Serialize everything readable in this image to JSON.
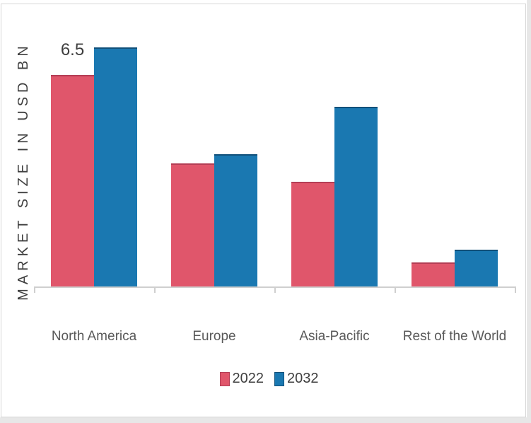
{
  "colors": {
    "series_2022": "#e0566b",
    "series_2022_edge": "#b43e55",
    "series_2032": "#1a78b1",
    "series_2032_edge": "#11507a",
    "axis_line": "#cfcfcf",
    "category_label": "#595959",
    "value_label": "#3f3f3f",
    "card_border": "#d6d6d6",
    "edge_strip": "#e7e7e7"
  },
  "chart_data": {
    "type": "bar",
    "title": "",
    "ylabel": "MARKET SIZE IN USD BN",
    "xlabel": "",
    "categories": [
      "North America",
      "Europe",
      "Asia-Pacific",
      "Rest of the World"
    ],
    "series": [
      {
        "name": "2022",
        "color": "#e0566b",
        "edge_color": "#b43e55",
        "values": [
          6.5,
          3.75,
          3.2,
          0.7
        ],
        "data_labels": [
          "6.5",
          "",
          "",
          ""
        ]
      },
      {
        "name": "2032",
        "color": "#1a78b1",
        "edge_color": "#11507a",
        "values": [
          7.35,
          4.05,
          5.5,
          1.1
        ],
        "data_labels": [
          "",
          "",
          "",
          ""
        ]
      }
    ],
    "ylim": [
      0,
      8
    ],
    "grid": false,
    "legend_position": "bottom"
  }
}
